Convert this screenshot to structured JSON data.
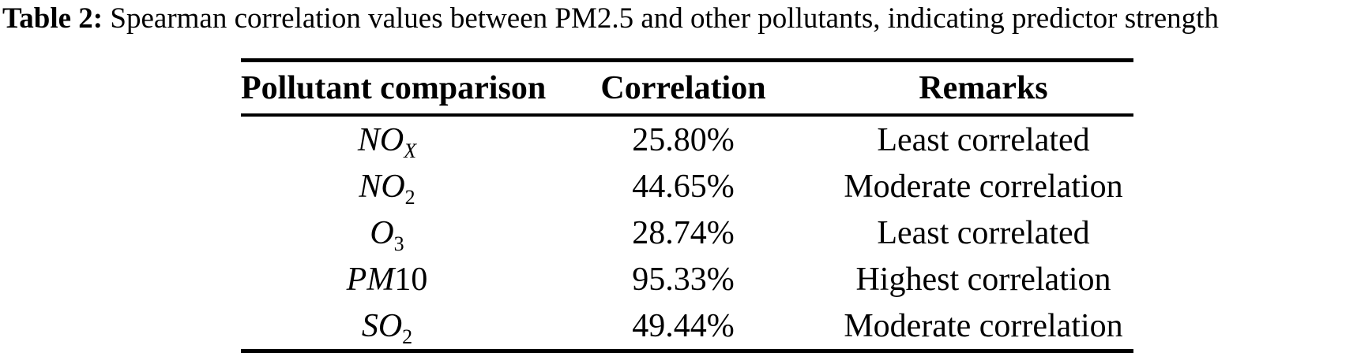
{
  "caption": {
    "label": "Table 2:",
    "text": "Spearman correlation values between PM2.5 and other pollutants, indicating predictor strength"
  },
  "table": {
    "columns": [
      "Pollutant comparison",
      "Correlation",
      "Remarks"
    ],
    "rows": [
      {
        "pollutant": {
          "main": "NO",
          "sub": "X",
          "sub_italic": true,
          "suffix": ""
        },
        "correlation": "25.80%",
        "remarks": "Least correlated"
      },
      {
        "pollutant": {
          "main": "NO",
          "sub": "2",
          "sub_italic": false,
          "suffix": ""
        },
        "correlation": "44.65%",
        "remarks": "Moderate correlation"
      },
      {
        "pollutant": {
          "main": "O",
          "sub": "3",
          "sub_italic": false,
          "suffix": ""
        },
        "correlation": "28.74%",
        "remarks": "Least correlated"
      },
      {
        "pollutant": {
          "main": "PM",
          "sub": "",
          "sub_italic": false,
          "suffix": "10"
        },
        "correlation": "95.33%",
        "remarks": "Highest correlation"
      },
      {
        "pollutant": {
          "main": "SO",
          "sub": "2",
          "sub_italic": false,
          "suffix": ""
        },
        "correlation": "49.44%",
        "remarks": "Moderate correlation"
      }
    ]
  }
}
